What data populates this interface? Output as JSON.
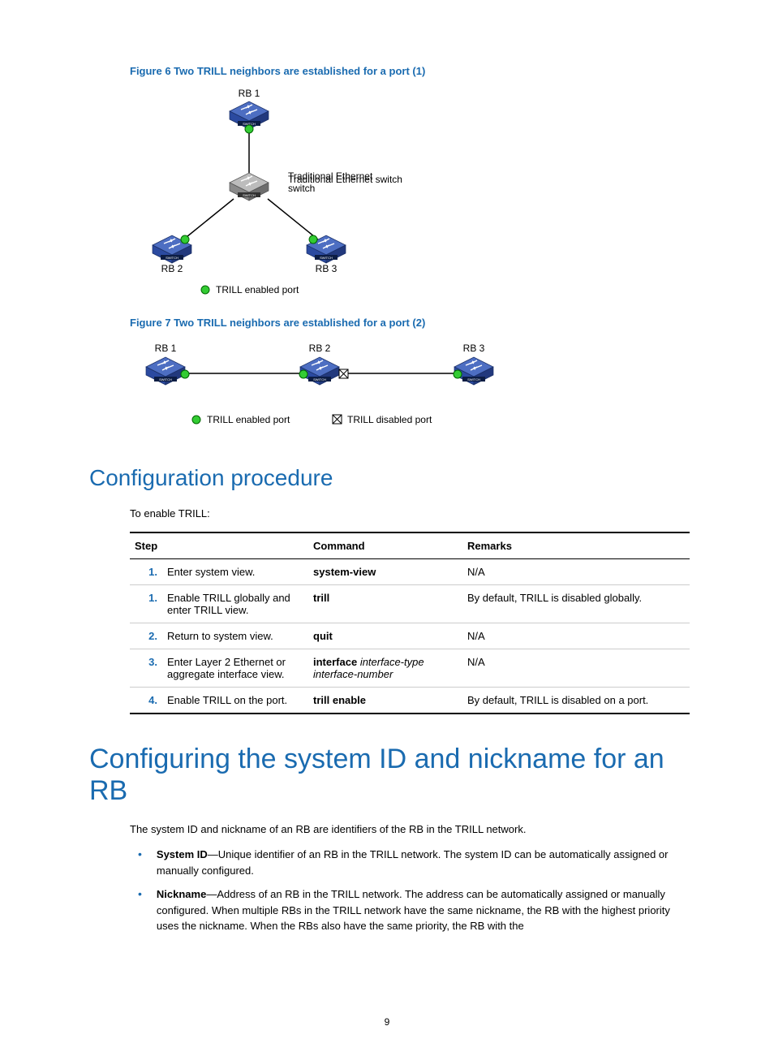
{
  "figure6": {
    "caption": "Figure 6 Two TRILL neighbors are established for a port (1)",
    "labels": {
      "rb1": "RB 1",
      "rb2": "RB 2",
      "rb3": "RB 3",
      "switch": "Traditional Ethernet switch"
    },
    "legend": {
      "green": "TRILL enabled port"
    },
    "colors": {
      "switch_body": "#2b4aa0",
      "switch_top": "#4d6ec2",
      "gray_body": "#8a8a8a",
      "gray_top": "#bcbcbc",
      "line": "#000000"
    }
  },
  "figure7": {
    "caption": "Figure 7 Two TRILL neighbors are established for a port (2)",
    "labels": {
      "rb1": "RB 1",
      "rb2": "RB 2",
      "rb3": "RB 3"
    },
    "legend": {
      "green": "TRILL enabled port",
      "x": "TRILL disabled port"
    }
  },
  "sections": {
    "config_proc_title": "Configuration procedure",
    "to_enable": "To enable TRILL:",
    "sysid_title": "Configuring the system ID and nickname for an RB",
    "sysid_intro": "The system ID and nickname of an RB are identifiers of the RB in the TRILL network.",
    "bullets": [
      {
        "term": "System ID",
        "text": "—Unique identifier of an RB in the TRILL network. The system ID can be automatically assigned or manually configured."
      },
      {
        "term": "Nickname",
        "text": "—Address of an RB in the TRILL network. The address can be automatically assigned or manually configured. When multiple RBs in the TRILL network have the same nickname, the RB with the highest priority uses the nickname. When the RBs also have the same priority, the RB with the"
      }
    ]
  },
  "table": {
    "headers": {
      "step": "Step",
      "command": "Command",
      "remarks": "Remarks"
    },
    "rows": [
      {
        "num": "1.",
        "desc": "Enter system view.",
        "cmd_bold": "system-view",
        "cmd_ital": "",
        "remarks": "N/A"
      },
      {
        "num": "1.",
        "desc": "Enable TRILL globally and enter TRILL view.",
        "cmd_bold": "trill",
        "cmd_ital": "",
        "remarks": "By default, TRILL is disabled globally."
      },
      {
        "num": "2.",
        "desc": "Return to system view.",
        "cmd_bold": "quit",
        "cmd_ital": "",
        "remarks": "N/A"
      },
      {
        "num": "3.",
        "desc": "Enter Layer 2 Ethernet or aggregate interface view.",
        "cmd_bold": "interface",
        "cmd_ital": " interface-type interface-number",
        "remarks": "N/A"
      },
      {
        "num": "4.",
        "desc": "Enable TRILL on the port.",
        "cmd_bold": "trill enable",
        "cmd_ital": "",
        "remarks": "By default, TRILL is disabled on a port."
      }
    ]
  },
  "page_number": "9"
}
